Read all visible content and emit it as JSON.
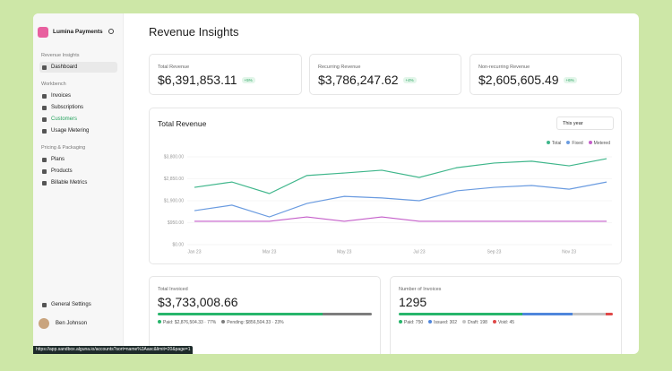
{
  "sidebar": {
    "brand": "Lumina Payments",
    "sections": [
      {
        "title": "Revenue Insights",
        "items": [
          "Dashboard"
        ]
      },
      {
        "title": "Workbench",
        "items": [
          "Invoices",
          "Subscriptions",
          "Customers",
          "Usage Metering"
        ]
      },
      {
        "title": "Pricing & Packaging",
        "items": [
          "Plans",
          "Products",
          "Billable Metrics"
        ]
      }
    ],
    "settings": "General Settings",
    "user": "Ben Johnson"
  },
  "header": {
    "title": "Revenue Insights"
  },
  "stats": [
    {
      "label": "Total Revenue",
      "value": "$6,391,853.11",
      "change": "+5%"
    },
    {
      "label": "Recurring Revenue",
      "value": "$3,786,247.62",
      "change": "+4%"
    },
    {
      "label": "Non-recurring Revenue",
      "value": "$2,605,605.49",
      "change": "+6%"
    }
  ],
  "chart_data": {
    "type": "line",
    "title": "Total Revenue",
    "period": "This year",
    "legend": "top-right",
    "categories": [
      "Jan 23",
      null,
      "Mar 23",
      null,
      "May 23",
      null,
      "Jul 23",
      null,
      "Sep 23",
      null,
      "Nov 23",
      null
    ],
    "series": [
      {
        "name": "Total",
        "color": "#3fb68b",
        "values": [
          2480,
          2710,
          2210,
          2990,
          3100,
          3220,
          2910,
          3330,
          3530,
          3610,
          3410,
          3720
        ]
      },
      {
        "name": "Fixed",
        "color": "#6a9be0",
        "values": [
          1470,
          1710,
          1200,
          1780,
          2090,
          2020,
          1900,
          2330,
          2480,
          2560,
          2400,
          2710
        ]
      },
      {
        "name": "Metered",
        "color": "#c45ec9",
        "values": [
          1010,
          1010,
          1010,
          1200,
          1010,
          1200,
          1010,
          1010,
          1010,
          1010,
          1010,
          1010
        ]
      }
    ],
    "ylim": [
      0,
      3800
    ],
    "yticks": [
      {
        "value": 0,
        "label": "$0.00"
      },
      {
        "value": 950,
        "label": "$950.00"
      },
      {
        "value": 1900,
        "label": "$1,900.00"
      },
      {
        "value": 2850,
        "label": "$2,850.00"
      },
      {
        "value": 3800,
        "label": "$3,800.00"
      }
    ],
    "grid": true
  },
  "invoiced": {
    "label": "Total Invoiced",
    "value": "$3,733,008.66",
    "parts": [
      {
        "text": "Paid: $2,876,504.33 · 77%",
        "value": 77,
        "color": "#27b56b"
      },
      {
        "text": "Pending: $856,504.33 · 23%",
        "value": 23,
        "color": "#7d7d7d"
      }
    ]
  },
  "invoices": {
    "label": "Number of Invoices",
    "value": "1295",
    "parts": [
      {
        "text": "Paid: 750",
        "value": 750,
        "color": "#27b56b"
      },
      {
        "text": "Issued: 302",
        "value": 302,
        "color": "#4f86dc"
      },
      {
        "text": "Draft: 198",
        "value": 198,
        "color": "#c4c4c4"
      },
      {
        "text": "Void: 45",
        "value": 45,
        "color": "#e04848"
      }
    ]
  },
  "status_url": "https://app.sandbox.alguna.io/accounts?sort=name%3Aasc&limit=20&page=1"
}
